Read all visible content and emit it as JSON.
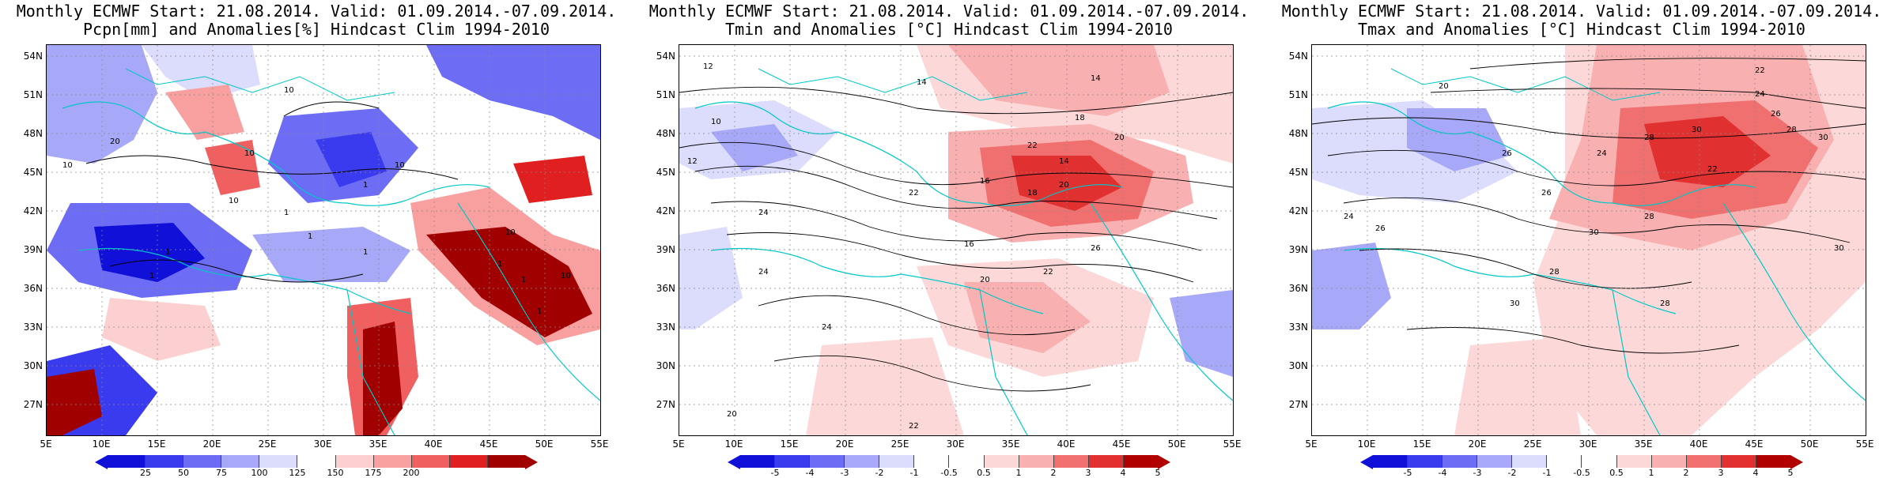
{
  "panels": [
    {
      "title_line1": "Monthly ECMWF Start: 21.08.2014. Valid: 01.09.2014.-07.09.2014.",
      "title_line2": "Pcpn[mm] and Anomalies[%] Hindcast Clim 1994-2010",
      "colorbar_colors": [
        "#1010d8",
        "#3a3aee",
        "#6c6cf4",
        "#a8a8f8",
        "#dcdcfc",
        "#ffffff",
        "#fcd0d0",
        "#f8a0a0",
        "#f06060",
        "#e02020",
        "#a00000"
      ],
      "colorbar_labels": [
        "25",
        "50",
        "75",
        "100",
        "125",
        "150",
        "175",
        "200"
      ],
      "contour_labels": [
        "10",
        "20",
        "10",
        "10",
        "10",
        "1",
        "1",
        "10",
        "1",
        "1",
        "1",
        "1",
        "10",
        "1",
        "1",
        "1",
        "10"
      ]
    },
    {
      "title_line1": "Monthly ECMWF Start: 21.08.2014. Valid: 01.09.2014.-07.09.2014.",
      "title_line2": "Tmin and Anomalies [°C] Hindcast Clim 1994-2010",
      "colorbar_colors": [
        "#1010d8",
        "#3a3aee",
        "#6c6cf4",
        "#a8a8f8",
        "#dcdcfc",
        "#ffffff",
        "#ffffff",
        "#fcd8d8",
        "#f8b0b0",
        "#f07070",
        "#e03030",
        "#b00000"
      ],
      "colorbar_labels": [
        "-5",
        "-4",
        "-3",
        "-2",
        "-1",
        "-0.5",
        "0.5",
        "1",
        "2",
        "3",
        "4",
        "5"
      ],
      "contour_labels": [
        "12",
        "14",
        "14",
        "10",
        "18",
        "12",
        "20",
        "22",
        "14",
        "24",
        "16",
        "18",
        "20",
        "22",
        "24",
        "16",
        "20",
        "22",
        "24",
        "26",
        "20",
        "22"
      ]
    },
    {
      "title_line1": "Monthly ECMWF Start: 21.08.2014. Valid: 01.09.2014.-07.09.2014.",
      "title_line2": "Tmax and Anomalies [°C] Hindcast Clim 1994-2010",
      "colorbar_colors": [
        "#1010d8",
        "#3a3aee",
        "#6c6cf4",
        "#a8a8f8",
        "#dcdcfc",
        "#ffffff",
        "#ffffff",
        "#fcd8d8",
        "#f8b0b0",
        "#f07070",
        "#e03030",
        "#b00000"
      ],
      "colorbar_labels": [
        "-5",
        "-4",
        "-3",
        "-2",
        "-1",
        "-0.5",
        "0.5",
        "1",
        "2",
        "3",
        "4",
        "5"
      ],
      "contour_labels": [
        "20",
        "22",
        "24",
        "26",
        "28",
        "30",
        "24",
        "26",
        "28",
        "30",
        "22",
        "26",
        "28",
        "30",
        "24",
        "26",
        "28",
        "30",
        "28",
        "30"
      ]
    }
  ],
  "lat_labels": [
    "54N",
    "51N",
    "48N",
    "45N",
    "42N",
    "39N",
    "36N",
    "33N",
    "30N",
    "27N"
  ],
  "lon_labels": [
    "5E",
    "10E",
    "15E",
    "20E",
    "25E",
    "30E",
    "35E",
    "40E",
    "45E",
    "50E",
    "55E"
  ]
}
